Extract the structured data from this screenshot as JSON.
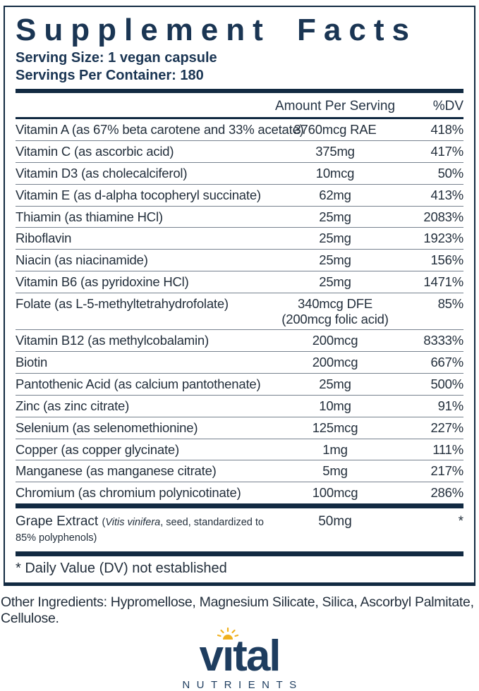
{
  "label": {
    "title": "Supplement Facts",
    "serving_size": "Serving Size: 1 vegan capsule",
    "servings_per_container": "Servings Per Container: 180",
    "columns": {
      "amount": "Amount Per Serving",
      "dv": "%DV"
    },
    "rows": [
      {
        "name": "Vitamin A (as 67% beta carotene and 33% acetate)",
        "amount": "3760mcg RAE",
        "dv": "418%"
      },
      {
        "name": "Vitamin C (as ascorbic acid)",
        "amount": "375mg",
        "dv": "417%"
      },
      {
        "name": "Vitamin D3 (as cholecalciferol)",
        "amount": "10mcg",
        "dv": "50%"
      },
      {
        "name": "Vitamin E (as d-alpha tocopheryl succinate)",
        "amount": "62mg",
        "dv": "413%"
      },
      {
        "name": "Thiamin (as thiamine HCl)",
        "amount": "25mg",
        "dv": "2083%"
      },
      {
        "name": "Riboflavin",
        "amount": "25mg",
        "dv": "1923%"
      },
      {
        "name": "Niacin (as niacinamide)",
        "amount": "25mg",
        "dv": "156%"
      },
      {
        "name": "Vitamin B6 (as pyridoxine HCl)",
        "amount": "25mg",
        "dv": "1471%"
      },
      {
        "name": "Folate (as L-5-methyltetrahydrofolate)",
        "amount": "340mcg DFE",
        "amount2": "(200mcg folic acid)",
        "dv": "85%"
      },
      {
        "name": "Vitamin B12 (as methylcobalamin)",
        "amount": "200mcg",
        "dv": "8333%"
      },
      {
        "name": "Biotin",
        "amount": "200mcg",
        "dv": "667%"
      },
      {
        "name": "Pantothenic Acid (as calcium pantothenate)",
        "amount": "25mg",
        "dv": "500%"
      },
      {
        "name": "Zinc (as zinc citrate)",
        "amount": "10mg",
        "dv": "91%"
      },
      {
        "name": "Selenium (as selenomethionine)",
        "amount": "125mcg",
        "dv": "227%"
      },
      {
        "name": "Copper (as copper glycinate)",
        "amount": "1mg",
        "dv": "111%"
      },
      {
        "name": "Manganese (as manganese citrate)",
        "amount": "5mg",
        "dv": "217%"
      },
      {
        "name": "Chromium (as chromium polynicotinate)",
        "amount": "100mcg",
        "dv": "286%"
      }
    ],
    "grape": {
      "name": "Grape Extract ",
      "detail_pre": "(",
      "detail_italic": "Vitis vinifera",
      "detail_post": ", seed, standardized to 85% polyphenols)",
      "amount": "50mg",
      "dv": "*"
    },
    "footnote": "* Daily Value (DV) not established"
  },
  "other_ingredients": "Other Ingredients: Hypromellose, Magnesium Silicate, Silica, Ascorbyl Palmitate, Cellulose.",
  "logo": {
    "brand": "vital",
    "subtext": "NUTRIENTS"
  },
  "colors": {
    "navy": "#1a3553",
    "bar_navy": "#122a42",
    "logo_navy": "#1e3d5f",
    "sun_gold": "#f0b01e",
    "separator": "#76818e"
  }
}
